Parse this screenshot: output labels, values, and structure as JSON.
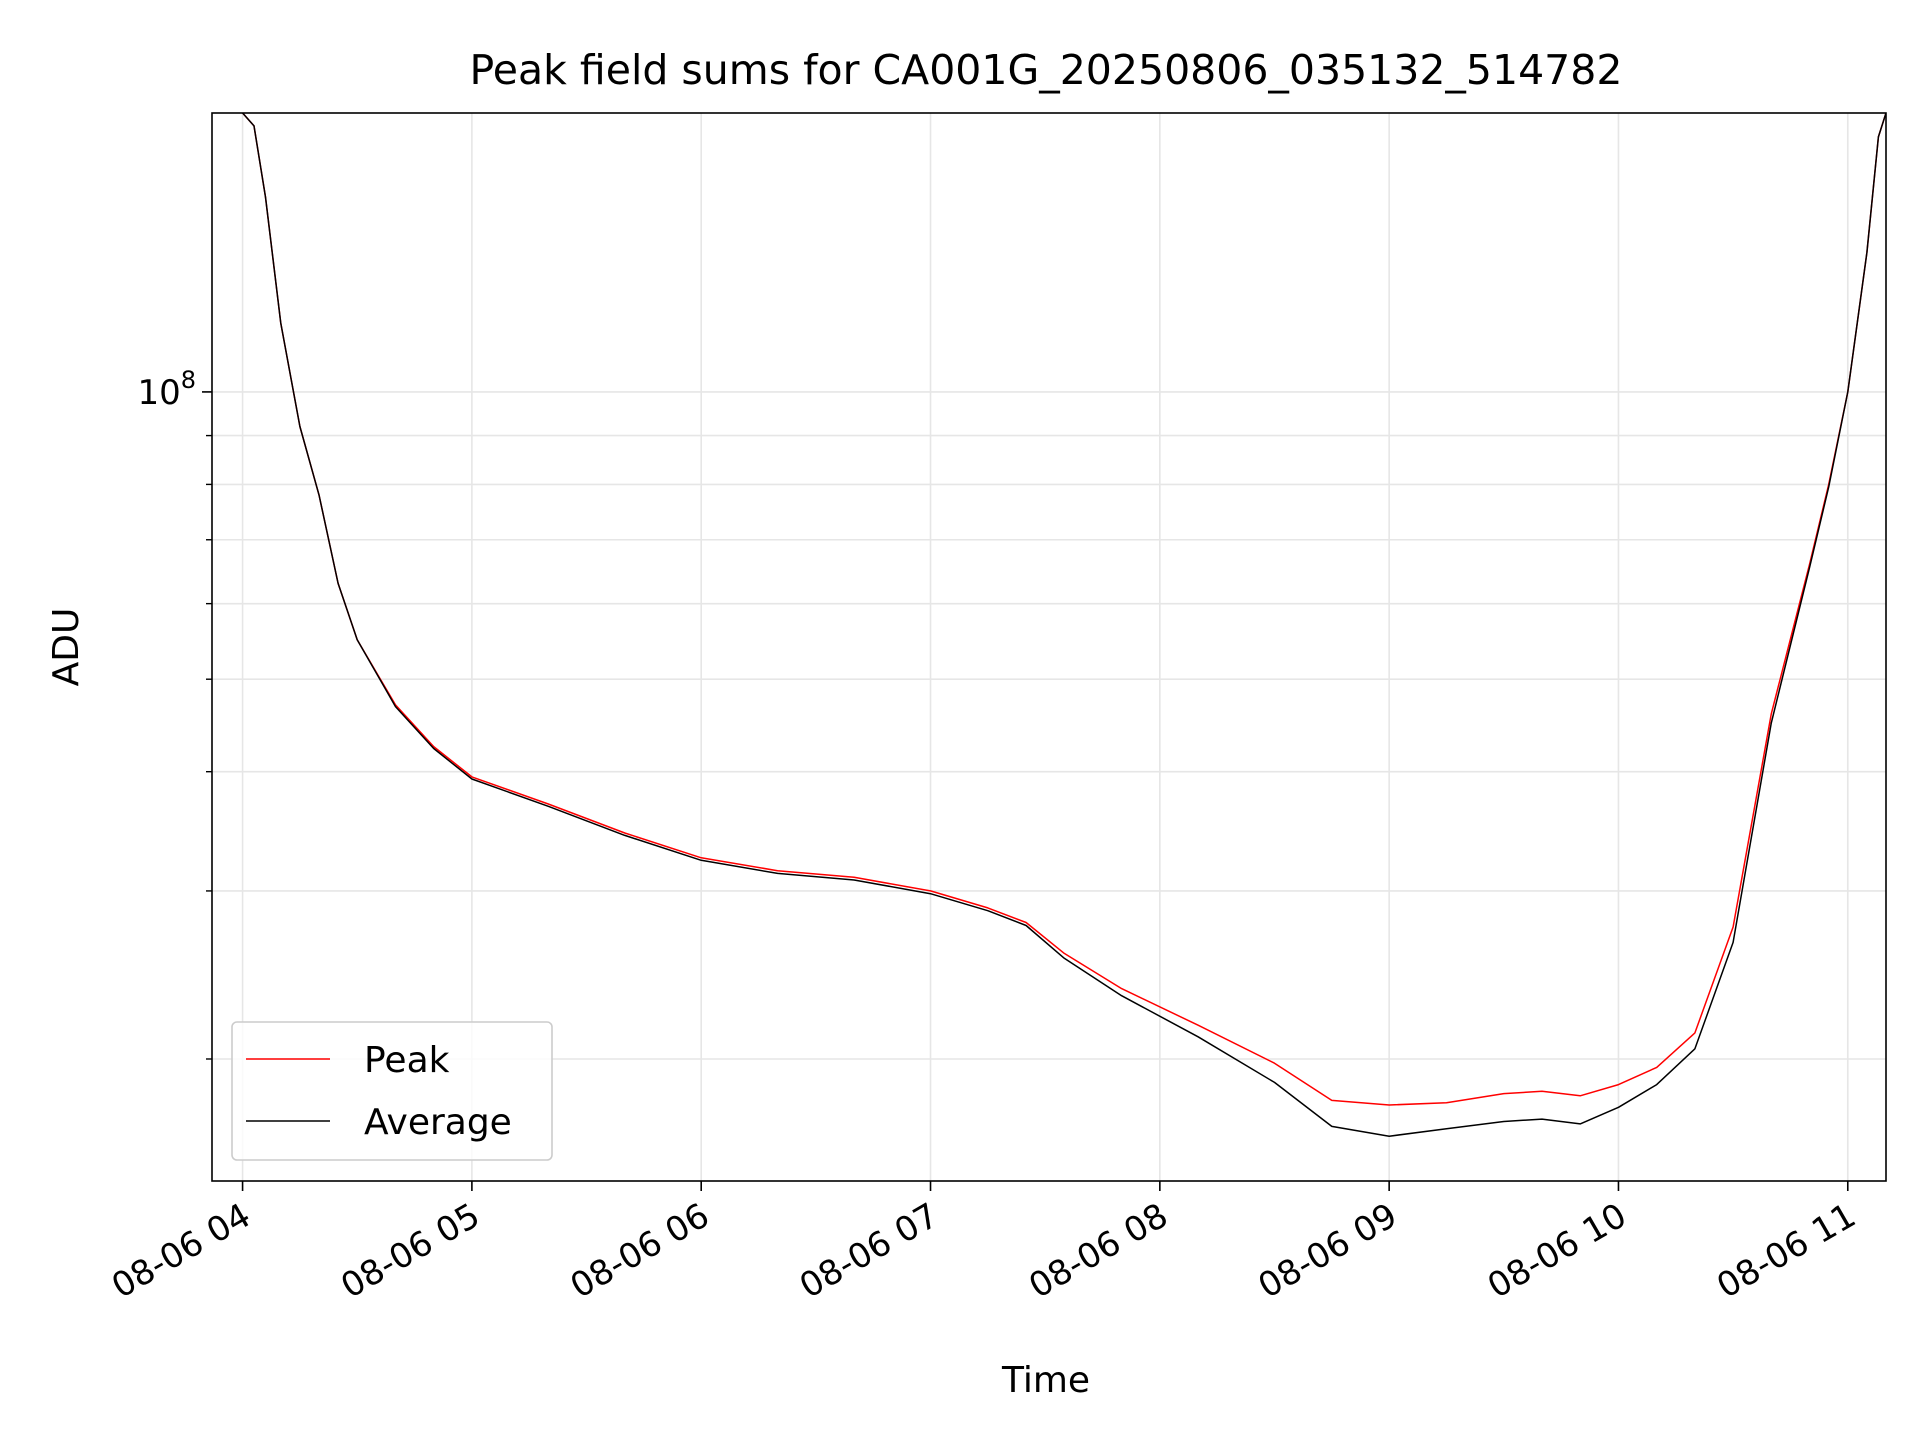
{
  "chart_data": {
    "type": "line",
    "title": "Peak field sums for CA001G_20250806_035132_514782",
    "xlabel": "Time",
    "ylabel": "ADU",
    "x_range": [
      "2025-08-06 03:52",
      "2025-08-06 11:10"
    ],
    "y_range": [
      14900000,
      196000000
    ],
    "y_scale": "log",
    "y_tick_labels": [
      {
        "value": 100000000,
        "base": "10",
        "exp": "8"
      }
    ],
    "y_minor_ticks": [
      20000000,
      30000000,
      40000000,
      50000000,
      60000000,
      70000000,
      80000000,
      90000000
    ],
    "x_tick_labels": [
      {
        "t": "2025-08-06 04:00",
        "label": "08-06 04"
      },
      {
        "t": "2025-08-06 05:00",
        "label": "08-06 05"
      },
      {
        "t": "2025-08-06 06:00",
        "label": "08-06 06"
      },
      {
        "t": "2025-08-06 07:00",
        "label": "08-06 07"
      },
      {
        "t": "2025-08-06 08:00",
        "label": "08-06 08"
      },
      {
        "t": "2025-08-06 09:00",
        "label": "08-06 09"
      },
      {
        "t": "2025-08-06 10:00",
        "label": "08-06 10"
      },
      {
        "t": "2025-08-06 11:00",
        "label": "08-06 11"
      }
    ],
    "grid": true,
    "legend_position": "lower-left",
    "series": [
      {
        "name": "Peak",
        "color": "#ff0000",
        "points": [
          [
            "2025-08-06 04:00",
            196000000
          ],
          [
            "2025-08-06 04:03",
            190000000
          ],
          [
            "2025-08-06 04:06",
            160000000
          ],
          [
            "2025-08-06 04:10",
            118000000
          ],
          [
            "2025-08-06 04:15",
            92000000
          ],
          [
            "2025-08-06 04:20",
            78000000
          ],
          [
            "2025-08-06 04:25",
            63000000
          ],
          [
            "2025-08-06 04:30",
            55000000
          ],
          [
            "2025-08-06 04:40",
            47000000
          ],
          [
            "2025-08-06 04:50",
            42500000
          ],
          [
            "2025-08-06 05:00",
            39500000
          ],
          [
            "2025-08-06 05:20",
            37000000
          ],
          [
            "2025-08-06 05:40",
            34500000
          ],
          [
            "2025-08-06 06:00",
            32500000
          ],
          [
            "2025-08-06 06:20",
            31500000
          ],
          [
            "2025-08-06 06:40",
            31000000
          ],
          [
            "2025-08-06 07:00",
            30000000
          ],
          [
            "2025-08-06 07:15",
            28800000
          ],
          [
            "2025-08-06 07:25",
            27800000
          ],
          [
            "2025-08-06 07:35",
            25800000
          ],
          [
            "2025-08-06 07:50",
            23700000
          ],
          [
            "2025-08-06 08:10",
            21700000
          ],
          [
            "2025-08-06 08:30",
            19800000
          ],
          [
            "2025-08-06 08:45",
            18100000
          ],
          [
            "2025-08-06 09:00",
            17900000
          ],
          [
            "2025-08-06 09:15",
            18000000
          ],
          [
            "2025-08-06 09:30",
            18400000
          ],
          [
            "2025-08-06 09:40",
            18500000
          ],
          [
            "2025-08-06 09:50",
            18300000
          ],
          [
            "2025-08-06 10:00",
            18800000
          ],
          [
            "2025-08-06 10:10",
            19600000
          ],
          [
            "2025-08-06 10:20",
            21300000
          ],
          [
            "2025-08-06 10:30",
            27500000
          ],
          [
            "2025-08-06 10:40",
            46000000
          ],
          [
            "2025-08-06 10:50",
            66000000
          ],
          [
            "2025-08-06 10:55",
            80000000
          ],
          [
            "2025-08-06 11:00",
            100000000
          ],
          [
            "2025-08-06 11:05",
            140000000
          ],
          [
            "2025-08-06 11:08",
            185000000
          ],
          [
            "2025-08-06 11:10",
            196000000
          ]
        ]
      },
      {
        "name": "Average",
        "color": "#000000",
        "points": [
          [
            "2025-08-06 04:00",
            196000000
          ],
          [
            "2025-08-06 04:03",
            190000000
          ],
          [
            "2025-08-06 04:06",
            160000000
          ],
          [
            "2025-08-06 04:10",
            118000000
          ],
          [
            "2025-08-06 04:15",
            92000000
          ],
          [
            "2025-08-06 04:20",
            78000000
          ],
          [
            "2025-08-06 04:25",
            63000000
          ],
          [
            "2025-08-06 04:30",
            55000000
          ],
          [
            "2025-08-06 04:40",
            46800000
          ],
          [
            "2025-08-06 04:50",
            42300000
          ],
          [
            "2025-08-06 05:00",
            39300000
          ],
          [
            "2025-08-06 05:20",
            36800000
          ],
          [
            "2025-08-06 05:40",
            34300000
          ],
          [
            "2025-08-06 06:00",
            32300000
          ],
          [
            "2025-08-06 06:20",
            31300000
          ],
          [
            "2025-08-06 06:40",
            30800000
          ],
          [
            "2025-08-06 07:00",
            29800000
          ],
          [
            "2025-08-06 07:15",
            28600000
          ],
          [
            "2025-08-06 07:25",
            27600000
          ],
          [
            "2025-08-06 07:35",
            25500000
          ],
          [
            "2025-08-06 07:50",
            23300000
          ],
          [
            "2025-08-06 08:10",
            21100000
          ],
          [
            "2025-08-06 08:30",
            18900000
          ],
          [
            "2025-08-06 08:45",
            17000000
          ],
          [
            "2025-08-06 09:00",
            16600000
          ],
          [
            "2025-08-06 09:15",
            16900000
          ],
          [
            "2025-08-06 09:30",
            17200000
          ],
          [
            "2025-08-06 09:40",
            17300000
          ],
          [
            "2025-08-06 09:50",
            17100000
          ],
          [
            "2025-08-06 10:00",
            17800000
          ],
          [
            "2025-08-06 10:10",
            18800000
          ],
          [
            "2025-08-06 10:20",
            20500000
          ],
          [
            "2025-08-06 10:30",
            26500000
          ],
          [
            "2025-08-06 10:40",
            45000000
          ],
          [
            "2025-08-06 10:50",
            65500000
          ],
          [
            "2025-08-06 10:55",
            79500000
          ],
          [
            "2025-08-06 11:00",
            100000000
          ],
          [
            "2025-08-06 11:05",
            140000000
          ],
          [
            "2025-08-06 11:08",
            185000000
          ],
          [
            "2025-08-06 11:10",
            196000000
          ]
        ]
      }
    ]
  }
}
